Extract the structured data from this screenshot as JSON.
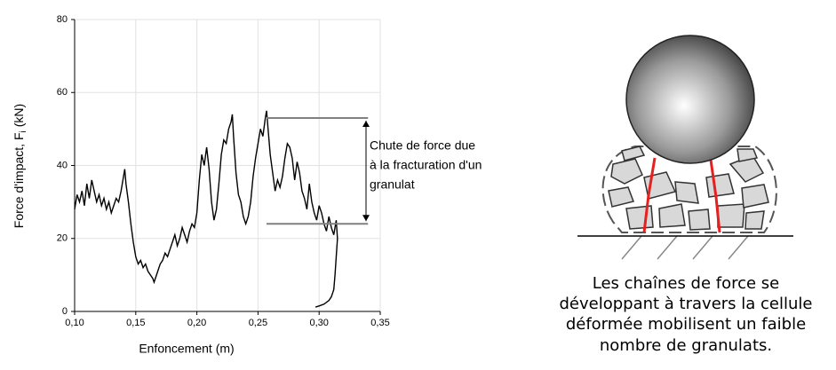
{
  "chart_data": {
    "type": "line",
    "xlabel": "Enfoncement (m)",
    "ylabel": "Force d'impact, F",
    "ylabel_sub": "i",
    "ylabel_end": "(kN)",
    "xlim": [
      0.1,
      0.35
    ],
    "xticks": [
      {
        "value": 0.1,
        "label": "0,10"
      },
      {
        "value": 0.15,
        "label": "0,15"
      },
      {
        "value": 0.2,
        "label": "0,20"
      },
      {
        "value": 0.25,
        "label": "0,25"
      },
      {
        "value": 0.3,
        "label": "0,30"
      },
      {
        "value": 0.35,
        "label": "0,35"
      }
    ],
    "ylim": [
      0,
      80
    ],
    "yticks": [
      0,
      20,
      40,
      60,
      80
    ],
    "grid": true,
    "x": [
      0.1,
      0.102,
      0.104,
      0.106,
      0.108,
      0.11,
      0.112,
      0.114,
      0.116,
      0.118,
      0.12,
      0.122,
      0.124,
      0.126,
      0.128,
      0.13,
      0.132,
      0.134,
      0.136,
      0.138,
      0.14,
      0.141,
      0.142,
      0.144,
      0.146,
      0.148,
      0.15,
      0.152,
      0.154,
      0.156,
      0.158,
      0.16,
      0.162,
      0.164,
      0.165,
      0.166,
      0.168,
      0.17,
      0.172,
      0.174,
      0.176,
      0.178,
      0.18,
      0.182,
      0.184,
      0.186,
      0.188,
      0.19,
      0.192,
      0.194,
      0.196,
      0.198,
      0.2,
      0.202,
      0.204,
      0.206,
      0.208,
      0.21,
      0.212,
      0.214,
      0.216,
      0.218,
      0.22,
      0.222,
      0.224,
      0.226,
      0.228,
      0.229,
      0.23,
      0.232,
      0.234,
      0.236,
      0.238,
      0.24,
      0.242,
      0.244,
      0.246,
      0.248,
      0.25,
      0.252,
      0.254,
      0.256,
      0.257,
      0.258,
      0.26,
      0.262,
      0.264,
      0.266,
      0.268,
      0.27,
      0.272,
      0.274,
      0.276,
      0.278,
      0.28,
      0.282,
      0.284,
      0.286,
      0.288,
      0.29,
      0.292,
      0.294,
      0.296,
      0.298,
      0.3,
      0.302,
      0.304,
      0.306,
      0.308,
      0.31,
      0.312,
      0.314,
      0.315,
      0.314,
      0.313,
      0.312,
      0.31,
      0.308,
      0.304,
      0.3,
      0.297
    ],
    "series": [
      {
        "color": "#000000",
        "values": [
          28,
          32,
          30,
          33,
          29,
          35,
          31,
          36,
          33,
          30,
          32,
          29,
          31,
          28,
          30,
          27,
          29,
          31,
          30,
          33,
          37,
          39,
          35,
          30,
          24,
          19,
          15,
          13,
          14,
          12,
          13,
          11,
          10,
          9,
          8,
          9,
          11,
          13,
          14,
          16,
          15,
          17,
          19,
          21,
          18,
          20,
          23,
          21,
          19,
          22,
          24,
          23,
          27,
          36,
          43,
          40,
          45,
          39,
          30,
          25,
          28,
          35,
          43,
          47,
          46,
          50,
          52,
          54,
          48,
          38,
          32,
          30,
          26,
          24,
          26,
          30,
          37,
          42,
          46,
          50,
          48,
          53,
          55,
          51,
          43,
          38,
          33,
          36,
          34,
          37,
          42,
          46,
          45,
          42,
          36,
          41,
          38,
          33,
          31,
          28,
          35,
          30,
          27,
          25,
          29,
          27,
          24,
          22,
          26,
          23,
          21,
          25,
          20,
          15,
          10,
          6,
          4,
          3,
          2,
          1.5,
          1.2
        ]
      }
    ],
    "annotation": {
      "lines": [
        "Chute de force due",
        "à la fracturation d'un",
        "granulat"
      ],
      "y_top": 53,
      "y_bottom": 24,
      "x_start": 0.257,
      "x_end": 0.34,
      "color": "#808080"
    }
  },
  "diagram": {
    "caption": [
      "Les chaînes de force se",
      "développant à travers la cellule",
      "déformée mobilisent un faible",
      "nombre de granulats."
    ]
  }
}
